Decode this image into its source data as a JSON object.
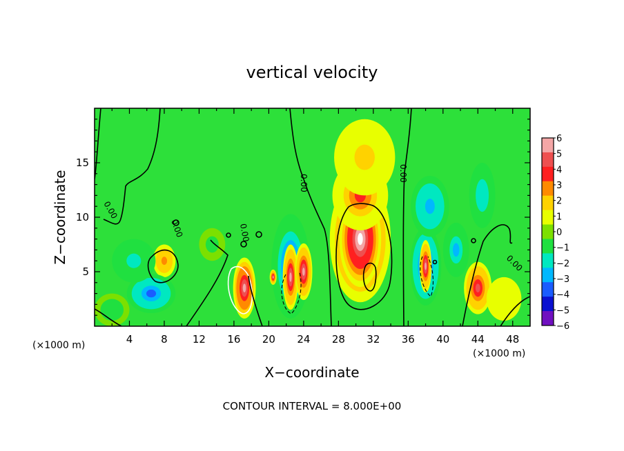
{
  "chart_data": {
    "type": "heatmap",
    "title": "vertical velocity",
    "xlabel": "X−coordinate",
    "ylabel": "Z−coordinate",
    "x_unit_left": "(×1000 m)",
    "x_unit_right": "(×1000 m)",
    "xlim": [
      0,
      50
    ],
    "ylim": [
      0,
      20
    ],
    "x_ticks": [
      4,
      8,
      12,
      16,
      20,
      24,
      28,
      32,
      36,
      40,
      44,
      48
    ],
    "y_ticks": [
      5,
      10,
      15
    ],
    "footer": "CONTOUR INTERVAL = 8.000E+00",
    "colorbar": {
      "levels": [
        6,
        5,
        4,
        3,
        2,
        1,
        0,
        -1,
        -2,
        -3,
        -4,
        -5,
        -6
      ],
      "labels": [
        "6",
        "5",
        "4",
        "3",
        "2",
        "1",
        "0",
        "−1",
        "−2",
        "−3",
        "−4",
        "−5",
        "−6"
      ],
      "colors": [
        "#f4a6a6",
        "#ee5050",
        "#ff2020",
        "#ff8a00",
        "#ffd200",
        "#e8ff00",
        "#7ce000",
        "#20e040",
        "#00e8c0",
        "#00b8ff",
        "#1a5cff",
        "#0a10d0",
        "#7010c0"
      ]
    },
    "contour_labels": [
      "0.00",
      "0.00",
      "0.00",
      "0.00",
      "0.00",
      "0.00"
    ],
    "blobs": [
      {
        "x": 30.5,
        "z": 8.0,
        "rx": 3.5,
        "rz": 5.8,
        "value": 5.0
      },
      {
        "x": 30.5,
        "z": 8.0,
        "rx": 2.4,
        "rz": 4.4,
        "value": 7.0
      },
      {
        "x": 30.5,
        "z": 12.0,
        "rx": 3.2,
        "rz": 3.2,
        "value": 3.5
      },
      {
        "x": 31.0,
        "z": 15.5,
        "rx": 3.5,
        "rz": 3.5,
        "value": 1.8
      },
      {
        "x": 17.2,
        "z": 3.5,
        "rx": 1.3,
        "rz": 2.8,
        "value": 6.0
      },
      {
        "x": 44.0,
        "z": 3.5,
        "rx": 1.6,
        "rz": 2.4,
        "value": 4.5
      },
      {
        "x": 8.0,
        "z": 6.0,
        "rx": 1.3,
        "rz": 1.5,
        "value": 3.0
      },
      {
        "x": 22.5,
        "z": 5.5,
        "rx": 2.2,
        "rz": 4.8,
        "value": -4.5
      },
      {
        "x": 22.5,
        "z": 4.5,
        "rx": 0.9,
        "rz": 3.0,
        "value": 5.5
      },
      {
        "x": 24.0,
        "z": 5.0,
        "rx": 1.0,
        "rz": 2.6,
        "value": 5.5
      },
      {
        "x": 20.5,
        "z": 4.5,
        "rx": 0.4,
        "rz": 0.7,
        "value": 5.5
      },
      {
        "x": 38.0,
        "z": 5.5,
        "rx": 1.8,
        "rz": 3.6,
        "value": -5.0
      },
      {
        "x": 38.0,
        "z": 5.5,
        "rx": 0.7,
        "rz": 2.4,
        "value": 5.5
      },
      {
        "x": 38.5,
        "z": 11.0,
        "rx": 2.2,
        "rz": 2.8,
        "value": -3.2
      },
      {
        "x": 6.5,
        "z": 3.0,
        "rx": 2.8,
        "rz": 1.8,
        "value": -4.0
      },
      {
        "x": 4.5,
        "z": 6.0,
        "rx": 2.5,
        "rz": 2.0,
        "value": -2.2
      },
      {
        "x": 41.5,
        "z": 7.0,
        "rx": 1.5,
        "rz": 2.5,
        "value": -2.6
      },
      {
        "x": 44.5,
        "z": 12.0,
        "rx": 1.5,
        "rz": 3.0,
        "value": -2.5
      },
      {
        "x": 13.5,
        "z": 7.5,
        "rx": 1.5,
        "rz": 1.5,
        "value": -1.0
      },
      {
        "x": 2.0,
        "z": 1.5,
        "rx": 2.0,
        "rz": 1.5,
        "value": -1.5
      },
      {
        "x": 47.0,
        "z": 2.5,
        "rx": 2.0,
        "rz": 2.0,
        "value": 1.2
      }
    ]
  }
}
